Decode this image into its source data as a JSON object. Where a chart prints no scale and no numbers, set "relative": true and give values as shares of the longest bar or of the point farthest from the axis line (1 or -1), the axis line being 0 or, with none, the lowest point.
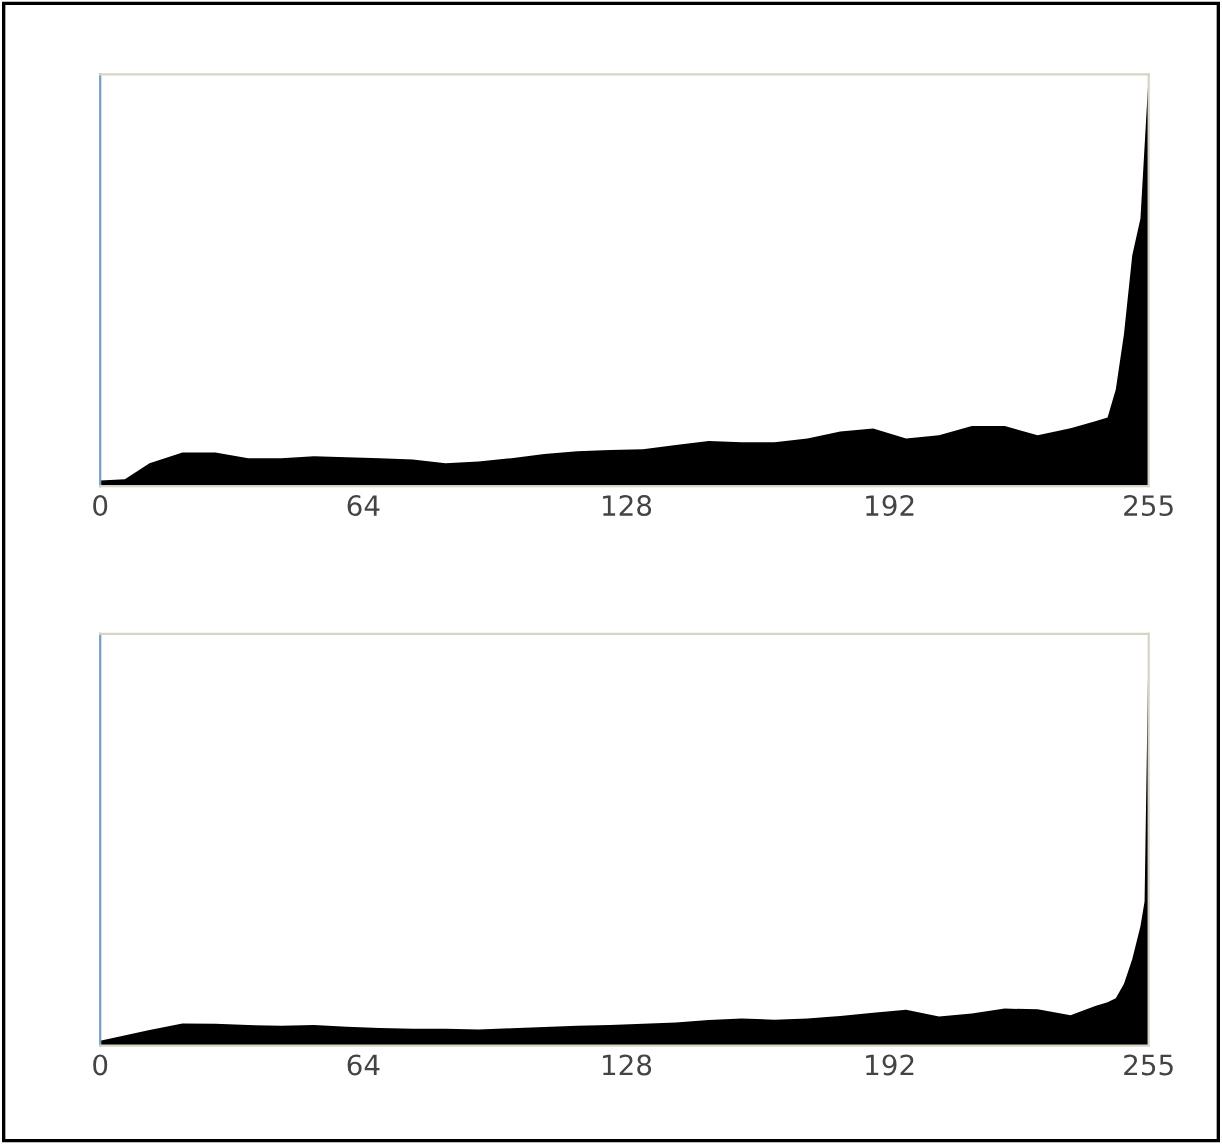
{
  "chart_data": [
    {
      "type": "area",
      "relative": true,
      "color": "#000000",
      "xlim": [
        0,
        255
      ],
      "xticks": [
        0,
        64,
        128,
        192,
        255
      ],
      "x": [
        0,
        6,
        12,
        20,
        28,
        36,
        44,
        52,
        60,
        68,
        76,
        84,
        92,
        100,
        108,
        116,
        124,
        132,
        140,
        148,
        156,
        164,
        172,
        180,
        188,
        196,
        204,
        212,
        220,
        228,
        236,
        242,
        245,
        247,
        249,
        251,
        253,
        255
      ],
      "values": [
        0.014,
        0.017,
        0.056,
        0.082,
        0.082,
        0.068,
        0.068,
        0.073,
        0.07,
        0.068,
        0.065,
        0.056,
        0.06,
        0.068,
        0.078,
        0.085,
        0.088,
        0.09,
        0.1,
        0.11,
        0.107,
        0.107,
        0.116,
        0.133,
        0.14,
        0.116,
        0.124,
        0.146,
        0.146,
        0.124,
        0.141,
        0.158,
        0.167,
        0.235,
        0.37,
        0.56,
        0.65,
        1
      ]
    },
    {
      "type": "area",
      "relative": true,
      "color": "#000000",
      "xlim": [
        0,
        255
      ],
      "xticks": [
        0,
        64,
        128,
        192,
        255
      ],
      "x": [
        0,
        12,
        20,
        28,
        36,
        44,
        52,
        60,
        68,
        76,
        84,
        92,
        100,
        108,
        116,
        124,
        132,
        140,
        148,
        156,
        164,
        172,
        180,
        188,
        196,
        204,
        212,
        220,
        228,
        236,
        242,
        245,
        247,
        249,
        251,
        253,
        254,
        255
      ],
      "values": [
        0.012,
        0.038,
        0.054,
        0.053,
        0.05,
        0.048,
        0.05,
        0.046,
        0.043,
        0.041,
        0.041,
        0.039,
        0.042,
        0.045,
        0.048,
        0.05,
        0.053,
        0.056,
        0.062,
        0.066,
        0.063,
        0.066,
        0.072,
        0.08,
        0.087,
        0.071,
        0.078,
        0.09,
        0.088,
        0.074,
        0.096,
        0.105,
        0.115,
        0.15,
        0.21,
        0.29,
        0.35,
        1
      ]
    }
  ]
}
